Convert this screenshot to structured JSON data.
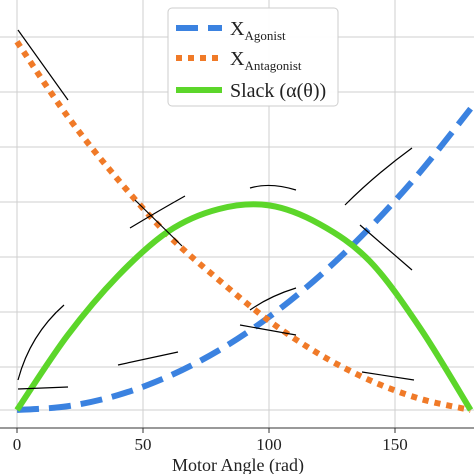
{
  "chart_data": {
    "type": "line",
    "xlabel": "Motor Angle (rad)",
    "xticks": [
      0,
      50,
      100,
      150
    ],
    "xlim": [
      0,
      180
    ],
    "ylim": [
      0,
      1
    ],
    "grid": true,
    "legend_position": "top-right",
    "series": [
      {
        "name": "X_Agonist",
        "legend_main": "X",
        "legend_sub": "Agonist",
        "style": "dashed",
        "color": "#3b82e0",
        "x": [
          0,
          20,
          40,
          60,
          80,
          100,
          120,
          140,
          160,
          180
        ],
        "y": [
          0.0,
          0.01,
          0.04,
          0.09,
          0.16,
          0.25,
          0.36,
          0.49,
          0.64,
          0.81
        ]
      },
      {
        "name": "X_Antagonist",
        "legend_main": "X",
        "legend_sub": "Antagonist",
        "style": "dotted",
        "color": "#f07a28",
        "x": [
          0,
          20,
          40,
          60,
          80,
          100,
          120,
          140,
          160,
          180
        ],
        "y": [
          0.99,
          0.79,
          0.62,
          0.47,
          0.35,
          0.24,
          0.15,
          0.08,
          0.03,
          0.0
        ]
      },
      {
        "name": "Slack (α(θ))",
        "legend_main": "Slack (α(θ))",
        "legend_sub": "",
        "style": "solid",
        "color": "#5cd62a",
        "x": [
          0,
          20,
          40,
          60,
          80,
          100,
          120,
          140,
          160,
          180
        ],
        "y": [
          0.0,
          0.2,
          0.36,
          0.48,
          0.54,
          0.55,
          0.5,
          0.4,
          0.22,
          0.0
        ]
      }
    ]
  }
}
